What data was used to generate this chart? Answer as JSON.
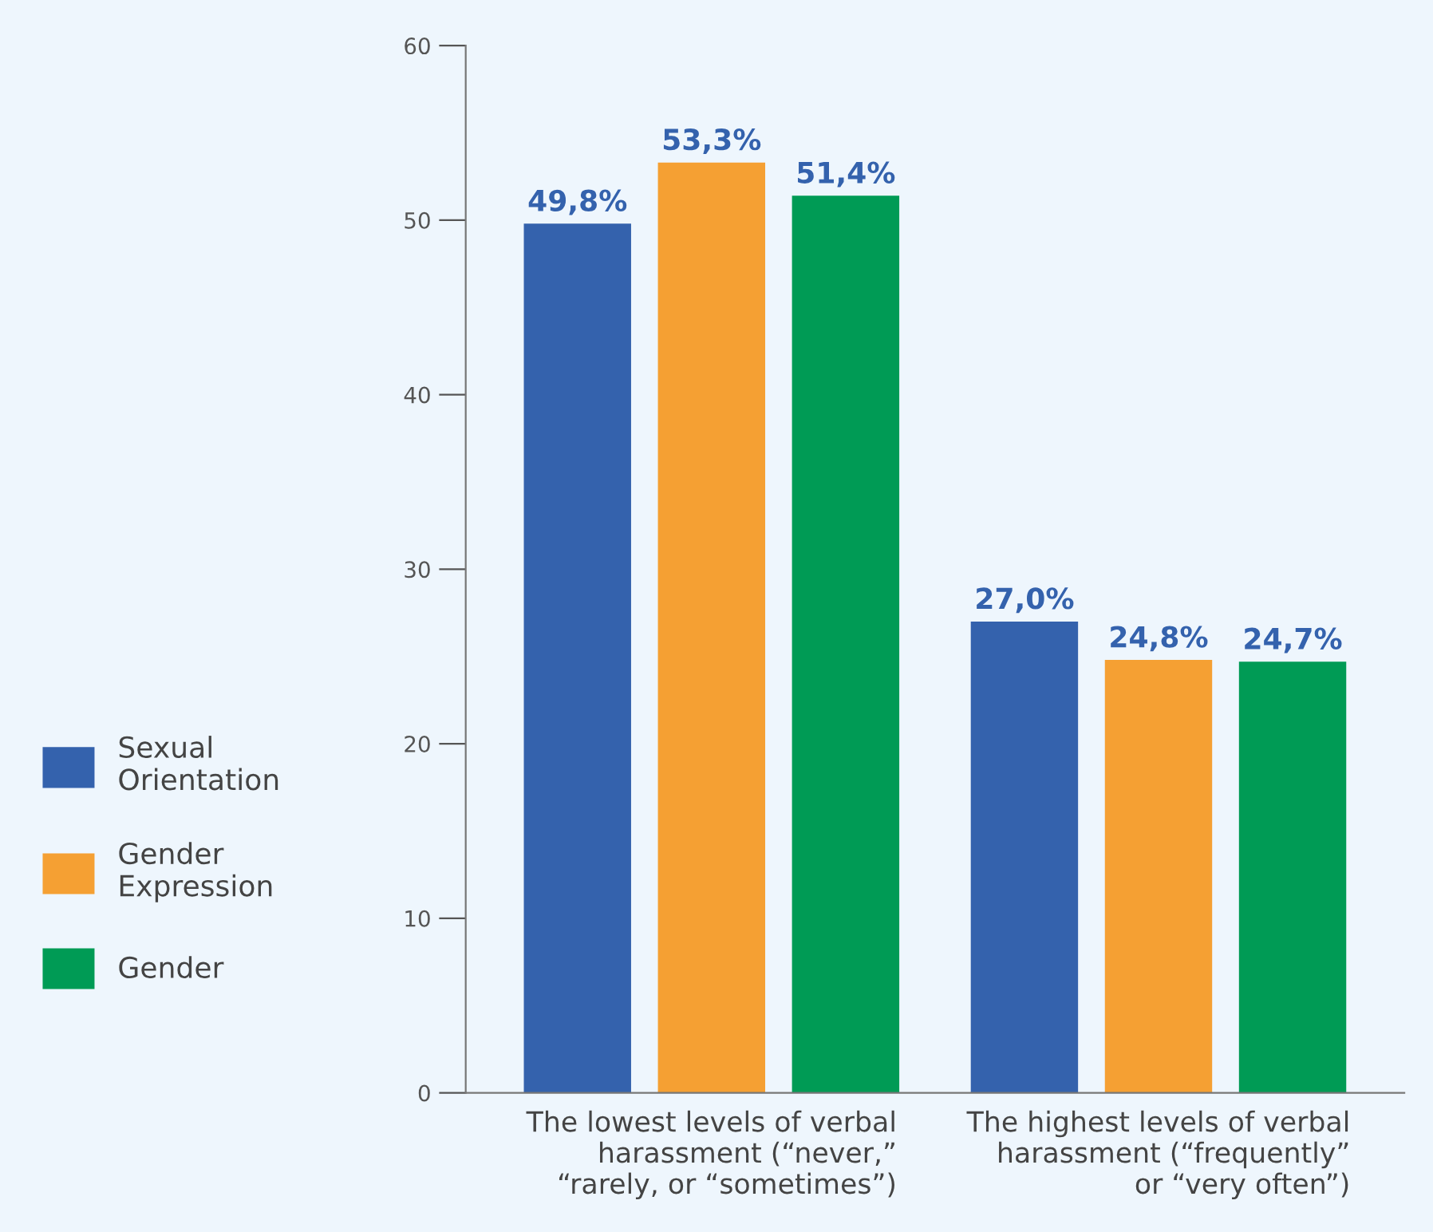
{
  "chart_data": {
    "type": "bar",
    "categories": [
      "The lowest levels of verbal\nharassment (“never,”\n“rarely, or “sometimes”)",
      "The highest levels of verbal\nharassment (“frequently”\nor “very often”)"
    ],
    "series": [
      {
        "name": "Sexual\nOrientation",
        "color": "#3462ad",
        "values": [
          49.8,
          27.0
        ],
        "value_labels": [
          "49,8%",
          "27,0%"
        ]
      },
      {
        "name": "Gender\nExpression",
        "color": "#f5a033",
        "values": [
          53.3,
          24.8
        ],
        "value_labels": [
          "53,3%",
          "24,8%"
        ]
      },
      {
        "name": "Gender",
        "color": "#009b55",
        "values": [
          51.4,
          24.7
        ],
        "value_labels": [
          "51,4%",
          "24,7%"
        ]
      }
    ],
    "ylim": [
      0,
      60
    ],
    "yticks": [
      0,
      10,
      20,
      30,
      40,
      50,
      60
    ],
    "legend": "left",
    "grid": false
  }
}
